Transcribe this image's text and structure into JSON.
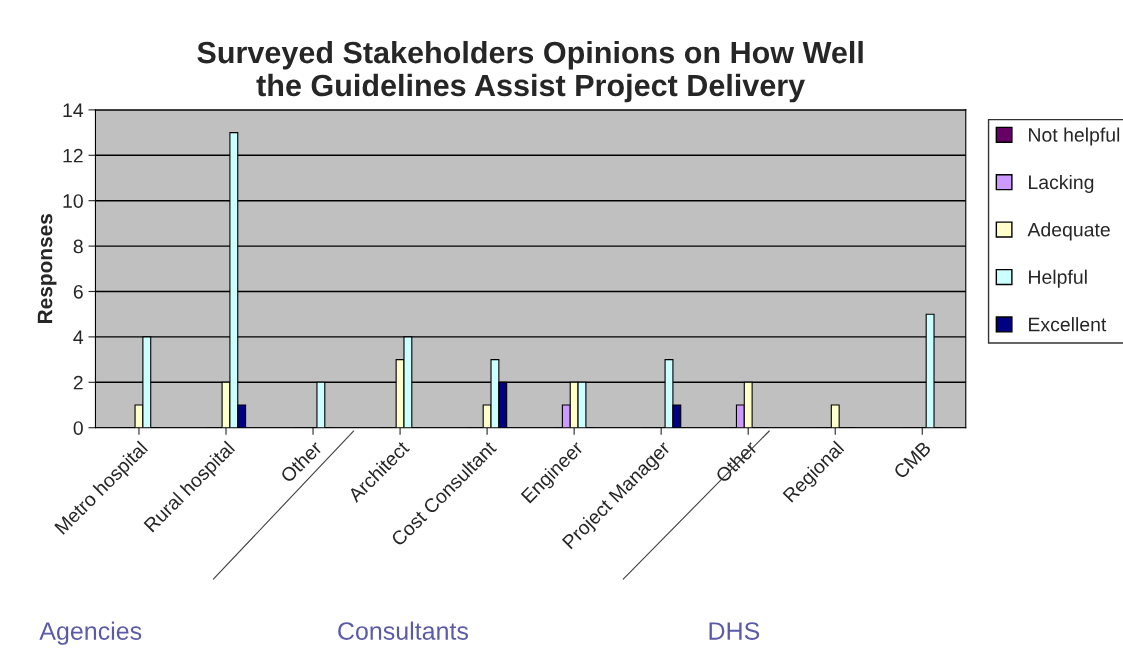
{
  "chart_data": {
    "type": "bar",
    "title": "Surveyed Stakeholders Opinions on How Well\nthe Guidelines Assist Project Delivery",
    "ylabel": "Responses",
    "categories": [
      "Metro hospital",
      "Rural hospital",
      "Other",
      "Architect",
      "Cost Consultant",
      "Engineer",
      "Project Manager",
      "Other",
      "Regional",
      "CMB"
    ],
    "series": [
      {
        "name": "Not helpful",
        "color": "#660066",
        "values": [
          0,
          0,
          0,
          0,
          0,
          0,
          0,
          0,
          0,
          0
        ]
      },
      {
        "name": "Lacking",
        "color": "#cc99ff",
        "values": [
          0,
          0,
          0,
          0,
          0,
          1,
          0,
          1,
          0,
          0
        ]
      },
      {
        "name": "Adequate",
        "color": "#ffffcc",
        "values": [
          1,
          2,
          0,
          3,
          1,
          2,
          0,
          2,
          1,
          0
        ]
      },
      {
        "name": "Helpful",
        "color": "#ccffff",
        "values": [
          4,
          13,
          2,
          4,
          3,
          2,
          3,
          0,
          0,
          5
        ]
      },
      {
        "name": "Excellent",
        "color": "#000080",
        "values": [
          0,
          1,
          0,
          0,
          2,
          0,
          1,
          0,
          0,
          0
        ]
      }
    ],
    "ylim": [
      0,
      14
    ],
    "yticks": [
      0,
      2,
      4,
      6,
      8,
      10,
      12,
      14
    ],
    "grid": "y",
    "legend": "right",
    "annotations": [
      "Agencies",
      "Consultants",
      "DHS"
    ]
  }
}
